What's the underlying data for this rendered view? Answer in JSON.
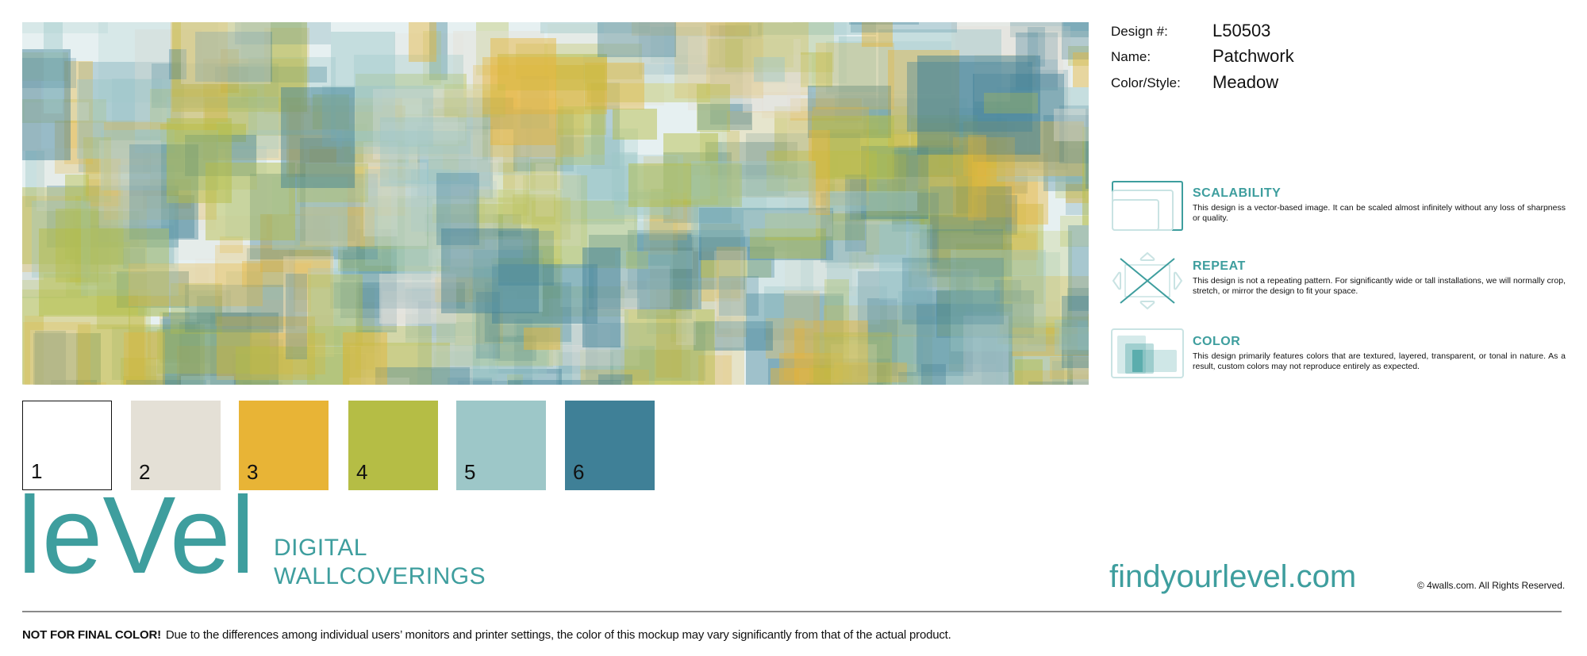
{
  "pattern": {
    "background": "#e6f0f1",
    "palette": [
      "#ffffff",
      "#e4e0d6",
      "#e8b436",
      "#b5bd45",
      "#9dc7c8",
      "#3f8097"
    ]
  },
  "info": {
    "design_label": "Design #:",
    "design_value": "L50503",
    "name_label": "Name:",
    "name_value": "Patchwork",
    "style_label": "Color/Style:",
    "style_value": "Meadow"
  },
  "features": [
    {
      "icon": "scalability-icon",
      "title": "SCALABILITY",
      "body": "This design is a vector-based image. It can be scaled almost infinitely without any loss of sharpness or quality."
    },
    {
      "icon": "repeat-icon",
      "title": "REPEAT",
      "body": "This design is not a repeating pattern. For significantly wide or tall installations, we will normally crop, stretch, or mirror the design to fit your space."
    },
    {
      "icon": "color-icon",
      "title": "COLOR",
      "body": "This design primarily features colors that are textured, layered, transparent, or tonal in nature. As a result, custom colors may not reproduce entirely as expected."
    }
  ],
  "swatches": [
    {
      "number": "1",
      "color": "#ffffff"
    },
    {
      "number": "2",
      "color": "#e4e0d6"
    },
    {
      "number": "3",
      "color": "#e8b436"
    },
    {
      "number": "4",
      "color": "#b5bd45"
    },
    {
      "number": "5",
      "color": "#9dc7c8"
    },
    {
      "number": "6",
      "color": "#3f8097"
    }
  ],
  "brand": {
    "logo": "leVel",
    "tagline_1": "DIGITAL",
    "tagline_2": "WALLCOVERINGS",
    "website": "findyourlevel.com",
    "copyright": "© 4walls.com. All Rights Reserved.",
    "accent": "#3e9e9e"
  },
  "footer": {
    "warning": "NOT FOR FINAL COLOR!",
    "text": "Due to the differences among individual users’ monitors and printer settings, the color of this mockup may vary significantly from that of the actual product."
  }
}
